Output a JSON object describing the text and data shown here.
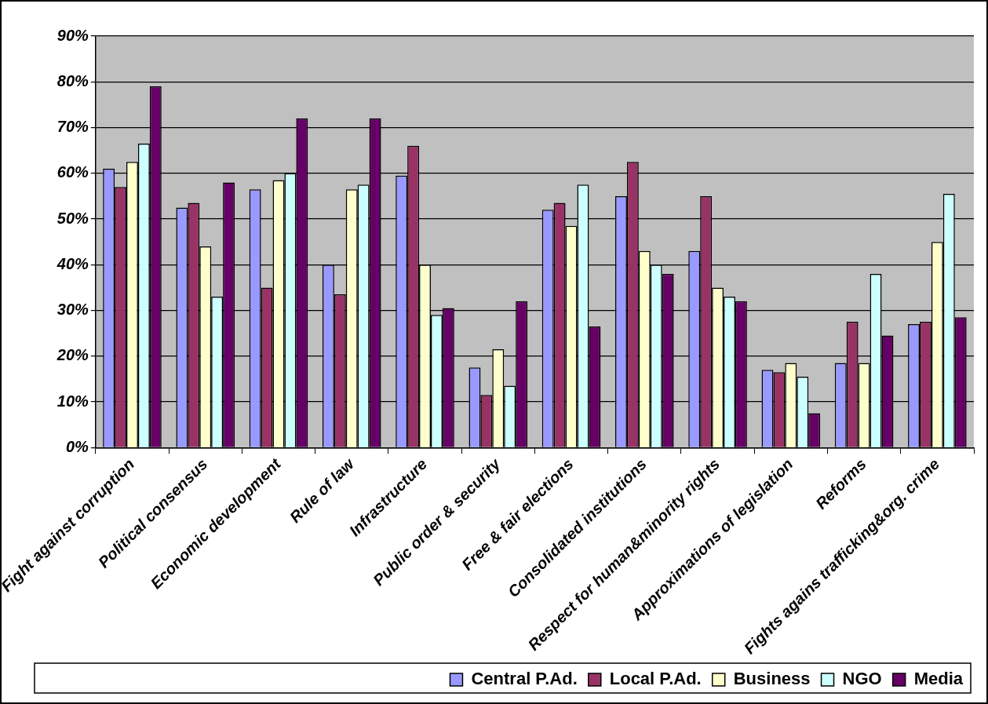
{
  "chart_data": {
    "type": "bar",
    "categories": [
      "Fight against corruption",
      "Political consensus",
      "Economic development",
      "Rule of law",
      "Infrastructure",
      "Public order & security",
      "Free & fair elections",
      "Consolidated institutions",
      "Respect for human&minority rights",
      "Approximations of legislation",
      "Reforms",
      "Fights agains trafficking&org. crime"
    ],
    "series": [
      {
        "name": "Central P.Ad.",
        "color": "#9999ff",
        "values": [
          61,
          52.5,
          56.5,
          40,
          59.5,
          17.5,
          52,
          55,
          43,
          17,
          18.5,
          27
        ]
      },
      {
        "name": "Local P.Ad.",
        "color": "#993366",
        "values": [
          57,
          53.5,
          35,
          33.5,
          66,
          11.5,
          53.5,
          62.5,
          55,
          16.5,
          27.5,
          27.5
        ]
      },
      {
        "name": "Business",
        "color": "#ffffcc",
        "values": [
          62.5,
          44,
          58.5,
          56.5,
          40,
          21.5,
          48.5,
          43,
          35,
          18.5,
          18.5,
          45
        ]
      },
      {
        "name": "NGO",
        "color": "#ccffff",
        "values": [
          66.5,
          33,
          60,
          57.5,
          29,
          13.5,
          57.5,
          40,
          33,
          15.5,
          38,
          55.5
        ]
      },
      {
        "name": "Media",
        "color": "#660066",
        "values": [
          79,
          58,
          72,
          72,
          30.5,
          32,
          26.5,
          38,
          32,
          7.5,
          24.5,
          28.5
        ]
      }
    ],
    "ylim": [
      0,
      90
    ],
    "yticks": [
      {
        "value": 0,
        "label": "0%"
      },
      {
        "value": 10,
        "label": "10%"
      },
      {
        "value": 20,
        "label": "20%"
      },
      {
        "value": 30,
        "label": "30%"
      },
      {
        "value": 40,
        "label": "40%"
      },
      {
        "value": 50,
        "label": "50%"
      },
      {
        "value": 60,
        "label": "60%"
      },
      {
        "value": 70,
        "label": "70%"
      },
      {
        "value": 80,
        "label": "80%"
      },
      {
        "value": 90,
        "label": "90%"
      }
    ],
    "grid": "y",
    "legend": "bottom"
  }
}
